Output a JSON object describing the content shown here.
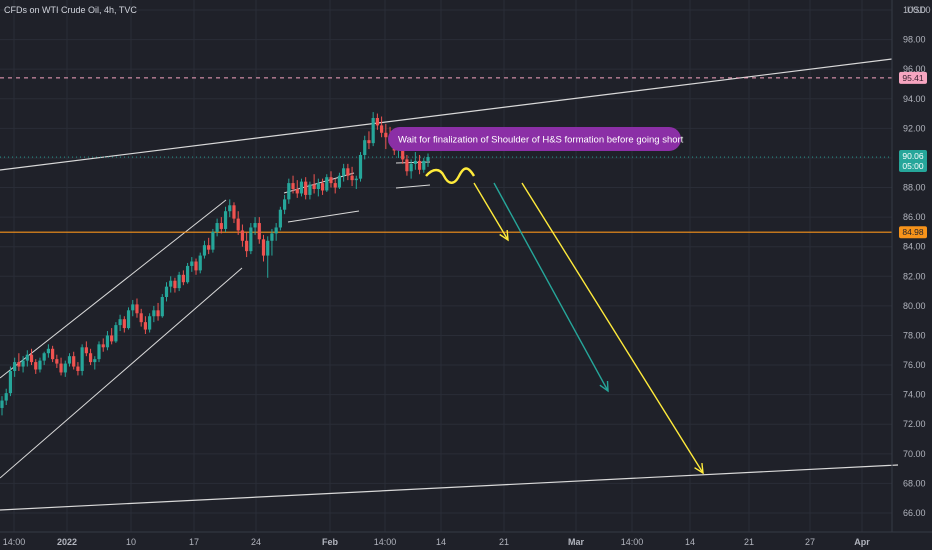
{
  "header": {
    "title": "CFDs on WTI Crude Oil, 4h, TVC",
    "currency": "USD"
  },
  "colors": {
    "background": "#1f2129",
    "grid": "#2a2d37",
    "up": "#26a69a",
    "down": "#ef5350",
    "support": "#f7931a",
    "dashed_level": "#f6a5c0",
    "note_bg": "#8b2fa6",
    "arrow_yellow": "#ffeb3b",
    "arrow_teal": "#26a69a",
    "channel": "#d9d9d9"
  },
  "chart_data": {
    "type": "candlestick",
    "symbol": "CFDs on WTI Crude Oil",
    "interval": "4h",
    "source": "TVC",
    "y_ticks": [
      "100.00",
      "98.00",
      "96.00",
      "94.00",
      "92.00",
      "90.00",
      "88.00",
      "86.00",
      "84.00",
      "82.00",
      "80.00",
      "78.00",
      "76.00",
      "74.00",
      "72.00",
      "70.00",
      "68.00",
      "66.00"
    ],
    "x_ticks": [
      "14:00",
      "2022",
      "10",
      "17",
      "24",
      "Feb",
      "14:00",
      "14",
      "21",
      "Mar",
      "14:00",
      "14",
      "21",
      "27",
      "Apr"
    ],
    "ylim": [
      65.5,
      101.5
    ],
    "price_labels": [
      {
        "text": "95.41",
        "value": 95.41,
        "role": "dashed_level"
      },
      {
        "text": "90.06",
        "value": 90.06,
        "role": "last_price"
      },
      {
        "text": "05:00",
        "value": 89.65,
        "role": "countdown"
      },
      {
        "text": "84.98",
        "value": 84.98,
        "role": "support"
      }
    ],
    "candles": [
      [
        73.1,
        73.9,
        72.6,
        73.6
      ],
      [
        73.6,
        74.4,
        73.3,
        74.1
      ],
      [
        74.1,
        75.9,
        73.9,
        75.6
      ],
      [
        75.6,
        76.5,
        75.2,
        76.2
      ],
      [
        76.2,
        76.8,
        75.6,
        75.9
      ],
      [
        75.9,
        76.6,
        75.5,
        76.3
      ],
      [
        76.3,
        77.0,
        75.9,
        76.7
      ],
      [
        76.7,
        77.1,
        76.0,
        76.2
      ],
      [
        76.2,
        76.4,
        75.4,
        75.7
      ],
      [
        75.7,
        76.5,
        75.5,
        76.3
      ],
      [
        76.3,
        76.9,
        76.0,
        76.8
      ],
      [
        76.8,
        77.4,
        76.5,
        77.1
      ],
      [
        77.1,
        77.3,
        76.2,
        76.4
      ],
      [
        76.4,
        76.7,
        75.8,
        76.1
      ],
      [
        76.1,
        76.5,
        75.3,
        75.5
      ],
      [
        75.5,
        76.3,
        75.2,
        76.1
      ],
      [
        76.1,
        76.8,
        75.9,
        76.6
      ],
      [
        76.6,
        76.9,
        75.7,
        75.9
      ],
      [
        75.9,
        76.2,
        75.3,
        75.6
      ],
      [
        75.6,
        77.4,
        75.3,
        77.2
      ],
      [
        77.2,
        77.6,
        76.6,
        76.8
      ],
      [
        76.8,
        77.1,
        76.0,
        76.2
      ],
      [
        76.2,
        76.6,
        75.7,
        76.4
      ],
      [
        76.4,
        77.6,
        76.2,
        77.4
      ],
      [
        77.4,
        77.8,
        76.9,
        77.2
      ],
      [
        77.2,
        78.3,
        77.0,
        78.0
      ],
      [
        78.0,
        78.5,
        77.4,
        77.6
      ],
      [
        77.6,
        78.9,
        77.5,
        78.7
      ],
      [
        78.7,
        79.4,
        78.3,
        79.1
      ],
      [
        79.1,
        79.3,
        78.2,
        78.5
      ],
      [
        78.5,
        79.9,
        78.4,
        79.7
      ],
      [
        79.7,
        80.4,
        79.3,
        80.1
      ],
      [
        80.1,
        80.5,
        79.2,
        79.5
      ],
      [
        79.5,
        79.8,
        78.6,
        78.9
      ],
      [
        78.9,
        79.3,
        78.1,
        78.4
      ],
      [
        78.4,
        79.5,
        78.2,
        79.3
      ],
      [
        79.3,
        80.0,
        78.9,
        79.7
      ],
      [
        79.7,
        80.2,
        79.0,
        79.3
      ],
      [
        79.3,
        80.8,
        79.2,
        80.6
      ],
      [
        80.6,
        81.6,
        80.3,
        81.3
      ],
      [
        81.3,
        82.0,
        80.9,
        81.7
      ],
      [
        81.7,
        81.9,
        80.9,
        81.2
      ],
      [
        81.2,
        82.3,
        81.0,
        82.1
      ],
      [
        82.1,
        82.4,
        81.4,
        81.6
      ],
      [
        81.6,
        82.9,
        81.5,
        82.7
      ],
      [
        82.7,
        83.3,
        82.3,
        83.0
      ],
      [
        83.0,
        83.2,
        82.1,
        82.4
      ],
      [
        82.4,
        83.6,
        82.2,
        83.4
      ],
      [
        83.4,
        84.4,
        83.2,
        84.1
      ],
      [
        84.1,
        84.6,
        83.5,
        83.8
      ],
      [
        83.8,
        85.2,
        83.6,
        85.0
      ],
      [
        85.0,
        85.9,
        84.7,
        85.6
      ],
      [
        85.6,
        86.0,
        84.9,
        85.2
      ],
      [
        85.2,
        86.7,
        85.0,
        86.4
      ],
      [
        86.4,
        87.2,
        86.0,
        86.8
      ],
      [
        86.8,
        87.0,
        85.6,
        85.9
      ],
      [
        85.9,
        86.4,
        84.8,
        85.1
      ],
      [
        85.1,
        85.5,
        84.0,
        84.4
      ],
      [
        84.4,
        85.0,
        83.3,
        83.7
      ],
      [
        83.7,
        85.6,
        83.5,
        85.3
      ],
      [
        85.3,
        86.0,
        84.8,
        85.6
      ],
      [
        85.6,
        86.0,
        84.2,
        84.5
      ],
      [
        84.5,
        84.8,
        83.0,
        83.4
      ],
      [
        83.4,
        84.7,
        81.9,
        84.4
      ],
      [
        84.4,
        85.2,
        83.4,
        84.9
      ],
      [
        84.9,
        85.6,
        84.4,
        85.3
      ],
      [
        85.3,
        86.7,
        85.1,
        86.5
      ],
      [
        86.5,
        87.5,
        86.2,
        87.2
      ],
      [
        87.2,
        88.6,
        86.9,
        88.3
      ],
      [
        88.3,
        88.8,
        87.6,
        87.9
      ],
      [
        87.9,
        88.5,
        87.3,
        87.6
      ],
      [
        87.6,
        88.6,
        87.4,
        88.4
      ],
      [
        88.4,
        88.7,
        87.2,
        87.5
      ],
      [
        87.5,
        88.4,
        87.2,
        88.2
      ],
      [
        88.2,
        88.9,
        87.6,
        87.9
      ],
      [
        87.9,
        88.6,
        87.4,
        88.3
      ],
      [
        88.3,
        88.6,
        87.5,
        87.8
      ],
      [
        87.8,
        88.9,
        87.7,
        88.7
      ],
      [
        88.7,
        89.1,
        88.0,
        88.3
      ],
      [
        88.3,
        88.6,
        87.6,
        88.0
      ],
      [
        88.0,
        89.0,
        87.9,
        88.8
      ],
      [
        88.8,
        89.6,
        88.4,
        89.3
      ],
      [
        89.3,
        89.6,
        88.5,
        88.8
      ],
      [
        88.8,
        89.4,
        88.1,
        88.5
      ],
      [
        88.5,
        88.8,
        87.9,
        88.6
      ],
      [
        88.6,
        90.4,
        88.4,
        90.2
      ],
      [
        90.2,
        91.5,
        89.9,
        91.2
      ],
      [
        91.2,
        91.8,
        90.6,
        91.0
      ],
      [
        91.0,
        93.1,
        90.8,
        92.7
      ],
      [
        92.7,
        93.0,
        91.9,
        92.2
      ],
      [
        92.2,
        92.8,
        91.4,
        91.7
      ],
      [
        91.7,
        92.3,
        90.6,
        91.4
      ],
      [
        91.4,
        92.1,
        90.9,
        91.0
      ],
      [
        91.0,
        91.5,
        90.2,
        90.5
      ],
      [
        90.5,
        91.1,
        90.0,
        90.8
      ],
      [
        90.8,
        91.0,
        89.6,
        89.9
      ],
      [
        89.9,
        90.2,
        88.8,
        89.1
      ],
      [
        89.1,
        89.9,
        88.6,
        89.6
      ],
      [
        89.6,
        90.4,
        89.2,
        89.8
      ],
      [
        89.8,
        90.2,
        88.9,
        89.2
      ],
      [
        89.2,
        90.0,
        89.0,
        89.8
      ],
      [
        89.8,
        90.3,
        89.4,
        90.06
      ]
    ],
    "annotations": [
      "Wait for finalization of Shoulder of  H&S formation before going short"
    ]
  }
}
